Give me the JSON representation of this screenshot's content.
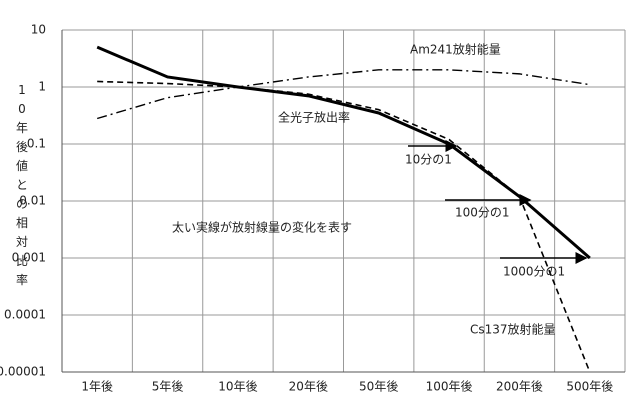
{
  "chart_data": {
    "type": "line",
    "ylabel": "10年後値との相対比率",
    "categories": [
      "1年後",
      "5年後",
      "10年後",
      "20年後",
      "50年後",
      "100年後",
      "200年後",
      "500年後"
    ],
    "series": [
      {
        "name": "全光子放出率",
        "color": "#000000",
        "style": "solid",
        "linewidth": 3,
        "values": [
          5,
          1.5,
          1,
          0.7,
          0.35,
          0.1,
          0.012,
          0.001
        ]
      },
      {
        "name": "Cs137放射能量",
        "color": "#000000",
        "style": "dashed",
        "linewidth": 1.6,
        "values": [
          1.25,
          1.15,
          1,
          0.75,
          0.4,
          0.12,
          0.012,
          1e-05
        ]
      },
      {
        "name": "Am241放射能量",
        "color": "#000000",
        "style": "dashdot",
        "linewidth": 1.4,
        "values": [
          0.28,
          0.65,
          1,
          1.5,
          2,
          2,
          1.7,
          1.1
        ]
      }
    ],
    "annotations": [
      "太い実線が放射線量の変化を表す",
      "10分の1",
      "100分の1",
      "1000分の1"
    ],
    "ylim": [
      1e-05,
      10
    ],
    "yticks": [
      10,
      1,
      0.1,
      0.01,
      0.001,
      0.0001,
      1e-05
    ],
    "log_y": true,
    "grid": true
  }
}
